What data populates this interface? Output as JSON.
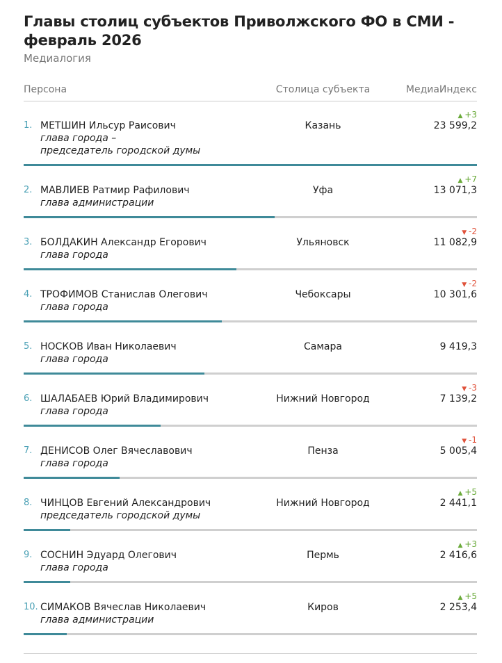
{
  "header": {
    "title": "Главы столиц субъектов Приволжского ФО в СМИ - февраль 2026",
    "subtitle": "Медиалогия"
  },
  "table": {
    "columns": [
      "Персона",
      "Столица субъекта",
      "МедиаИндекс"
    ],
    "rows": [
      {
        "rank": "1.",
        "name": "МЕТШИН Ильсур Раисович",
        "role": "глава города –\nпредседатель городской думы",
        "city": "Казань",
        "value": 23599.2,
        "value_label": "23 599,2",
        "change": "+3"
      },
      {
        "rank": "2.",
        "name": "МАВЛИЕВ Ратмир Рафилович",
        "role": "глава администрации",
        "city": "Уфа",
        "value": 13071.3,
        "value_label": "13 071,3",
        "change": "+7"
      },
      {
        "rank": "3.",
        "name": "БОЛДАКИН Александр Егорович",
        "role": "глава города",
        "city": "Ульяновск",
        "value": 11082.9,
        "value_label": "11 082,9",
        "change": "-2"
      },
      {
        "rank": "4.",
        "name": "ТРОФИМОВ Станислав Олегович",
        "role": "глава города",
        "city": "Чебоксары",
        "value": 10301.6,
        "value_label": "10 301,6",
        "change": "-2"
      },
      {
        "rank": "5.",
        "name": "НОСКОВ Иван Николаевич",
        "role": "глава города",
        "city": "Самара",
        "value": 9419.3,
        "value_label": "9 419,3",
        "change": null
      },
      {
        "rank": "6.",
        "name": "ШАЛАБАЕВ Юрий Владимирович",
        "role": "глава города",
        "city": "Нижний Новгород",
        "value": 7139.2,
        "value_label": "7 139,2",
        "change": "-3"
      },
      {
        "rank": "7.",
        "name": "ДЕНИСОВ Олег Вячеславович",
        "role": "глава города",
        "city": "Пенза",
        "value": 5005.4,
        "value_label": "5 005,4",
        "change": "-1"
      },
      {
        "rank": "8.",
        "name": "ЧИНЦОВ Евгений Александрович",
        "role": "председатель городской думы",
        "city": "Нижний Новгород",
        "value": 2441.1,
        "value_label": "2 441,1",
        "change": "+5"
      },
      {
        "rank": "9.",
        "name": "СОСНИН Эдуард Олегович",
        "role": "глава города",
        "city": "Пермь",
        "value": 2416.6,
        "value_label": "2 416,6",
        "change": "+3"
      },
      {
        "rank": "10.",
        "name": "СИМАКОВ Вячеслав Николаевич",
        "role": "глава администрации",
        "city": "Киров",
        "value": 2253.4,
        "value_label": "2 253,4",
        "change": "+5"
      }
    ]
  }
}
